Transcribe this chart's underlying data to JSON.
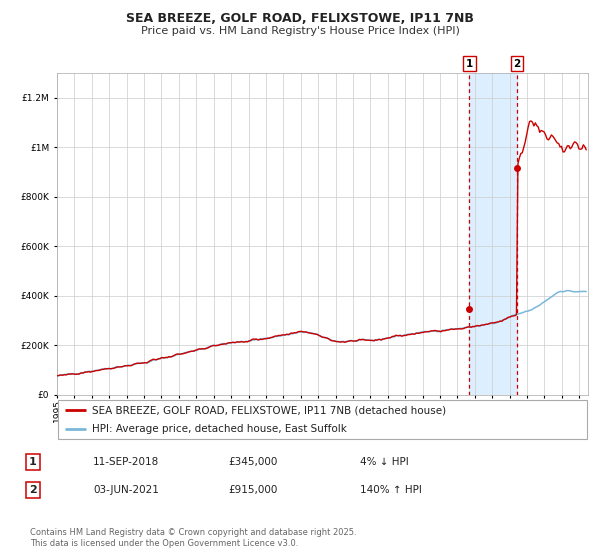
{
  "title": "SEA BREEZE, GOLF ROAD, FELIXSTOWE, IP11 7NB",
  "subtitle": "Price paid vs. HM Land Registry's House Price Index (HPI)",
  "legend_line1": "SEA BREEZE, GOLF ROAD, FELIXSTOWE, IP11 7NB (detached house)",
  "legend_line2": "HPI: Average price, detached house, East Suffolk",
  "marker1_date": "11-SEP-2018",
  "marker1_price": 345000,
  "marker1_pct": "4% ↓ HPI",
  "marker2_date": "03-JUN-2021",
  "marker2_price": 915000,
  "marker2_pct": "140% ↑ HPI",
  "annotation_text": "Contains HM Land Registry data © Crown copyright and database right 2025.\nThis data is licensed under the Open Government Licence v3.0.",
  "hpi_color": "#7ab8d9",
  "price_color": "#cc0000",
  "marker_color": "#cc0000",
  "shading_color": "#ddeeff",
  "dashed_line_color": "#cc0000",
  "grid_color": "#cccccc",
  "background_color": "#ffffff",
  "ylim": [
    0,
    1300000
  ],
  "xlim_start": 1995.0,
  "xlim_end": 2025.5,
  "marker1_x": 2018.69,
  "marker2_x": 2021.42,
  "title_fontsize": 9,
  "subtitle_fontsize": 8,
  "tick_fontsize": 6.5,
  "legend_fontsize": 7.5,
  "annotation_fontsize": 6
}
